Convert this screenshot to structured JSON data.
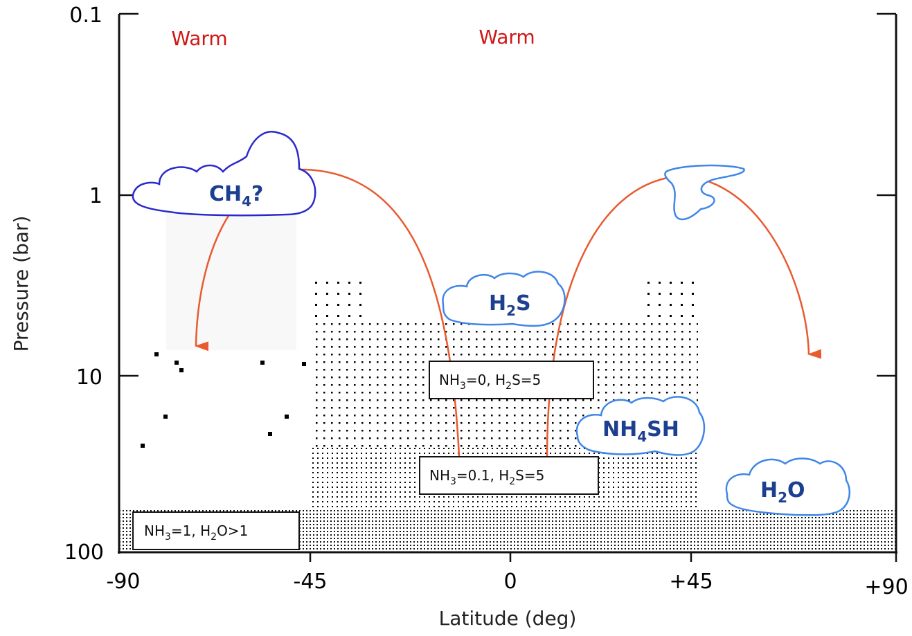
{
  "axes": {
    "x_label": "Latitude (deg)",
    "y_label": "Pressure (bar)",
    "x_ticks": [
      "-90",
      "-45",
      "0",
      "+45",
      "+90"
    ],
    "y_ticks": [
      "0.1",
      "1",
      "10",
      "100"
    ]
  },
  "regions": {
    "warm_left": "Warm",
    "warm_center": "Warm"
  },
  "clouds": {
    "ch4": {
      "main": "CH",
      "sub": "4",
      "tail": "?"
    },
    "h2s": {
      "main": "H",
      "sub": "2",
      "tail": "S"
    },
    "nh4sh": {
      "main": "NH",
      "sub": "4",
      "tail": "SH"
    },
    "h2o": {
      "main": "H",
      "sub": "2",
      "tail": "O"
    }
  },
  "boxes": {
    "equator_upper": {
      "p1": "NH",
      "s1": "3",
      "p2": "=0, H",
      "s2": "2",
      "p3": "S=5"
    },
    "equator_lower": {
      "p1": "NH",
      "s1": "3",
      "p2": "=0.1, H",
      "s2": "2",
      "p3": "S=5"
    },
    "deep": {
      "p1": "NH",
      "s1": "3",
      "p2": "=1, H",
      "s2": "2",
      "p3": "O>1"
    }
  },
  "colors": {
    "arrow": "#e85a30",
    "cloud_dark": "#2a2acc",
    "cloud_light": "#3f86e8",
    "warm_text": "#d01515"
  }
}
